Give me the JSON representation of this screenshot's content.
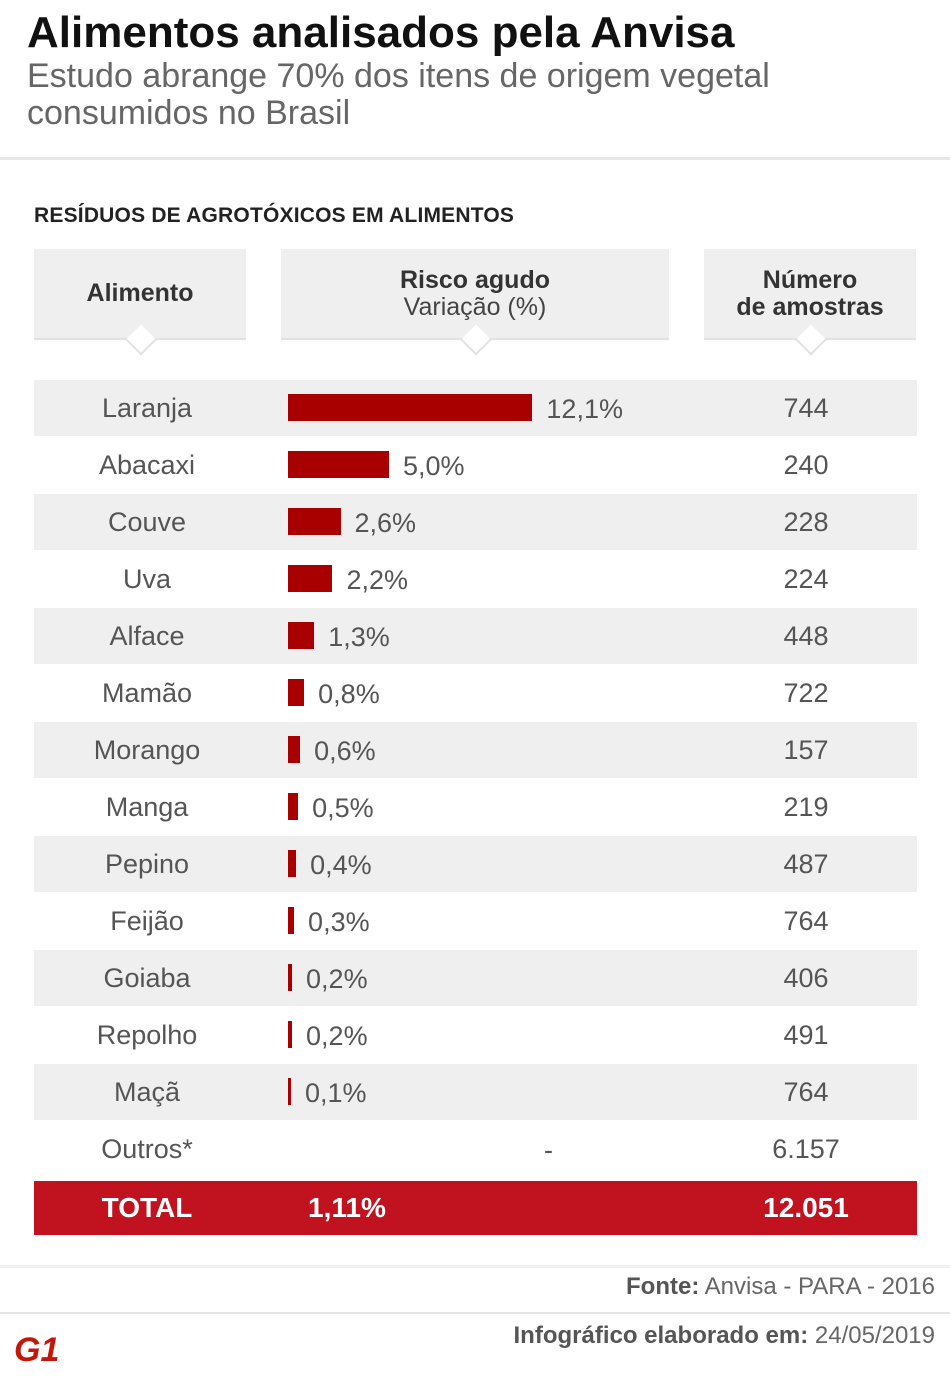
{
  "header": {
    "title": "Alimentos analisados pela Anvisa",
    "subtitle": "Estudo abrange 70% dos itens de origem vegetal consumidos no Brasil"
  },
  "section_title": "RESÍDUOS DE AGROTÓXICOS EM ALIMENTOS",
  "columns": {
    "food": "Alimento",
    "risk_title": "Risco agudo",
    "risk_subtitle": "Variação (%)",
    "samples_line1": "Número",
    "samples_line2": "de amostras"
  },
  "chart_data": {
    "type": "bar",
    "orientation": "horizontal",
    "title": "RESÍDUOS DE AGROTÓXICOS EM ALIMENTOS",
    "value_unit": "%",
    "categories": [
      "Laranja",
      "Abacaxi",
      "Couve",
      "Uva",
      "Alface",
      "Mamão",
      "Morango",
      "Manga",
      "Pepino",
      "Feijão",
      "Goiaba",
      "Repolho",
      "Maçã",
      "Outros*"
    ],
    "values": [
      12.1,
      5.0,
      2.6,
      2.2,
      1.3,
      0.8,
      0.6,
      0.5,
      0.4,
      0.3,
      0.2,
      0.2,
      0.1,
      null
    ],
    "value_labels": [
      "12,1%",
      "5,0%",
      "2,6%",
      "2,2%",
      "1,3%",
      "0,8%",
      "0,6%",
      "0,5%",
      "0,4%",
      "0,3%",
      "0,2%",
      "0,2%",
      "0,1%",
      "-"
    ],
    "samples": [
      "744",
      "240",
      "228",
      "224",
      "448",
      "722",
      "157",
      "219",
      "487",
      "764",
      "406",
      "491",
      "764",
      "6.157"
    ],
    "bar_color": "#a80000",
    "total": {
      "label": "TOTAL",
      "risk": "1,11%",
      "samples": "12.051"
    }
  },
  "footer": {
    "source_label": "Fonte:",
    "source_value": "Anvisa - PARA - 2016",
    "credit_label": "Infográfico elaborado em:",
    "credit_value": "24/05/2019",
    "logo_text": "G1",
    "brand_color": "#c4170c"
  }
}
